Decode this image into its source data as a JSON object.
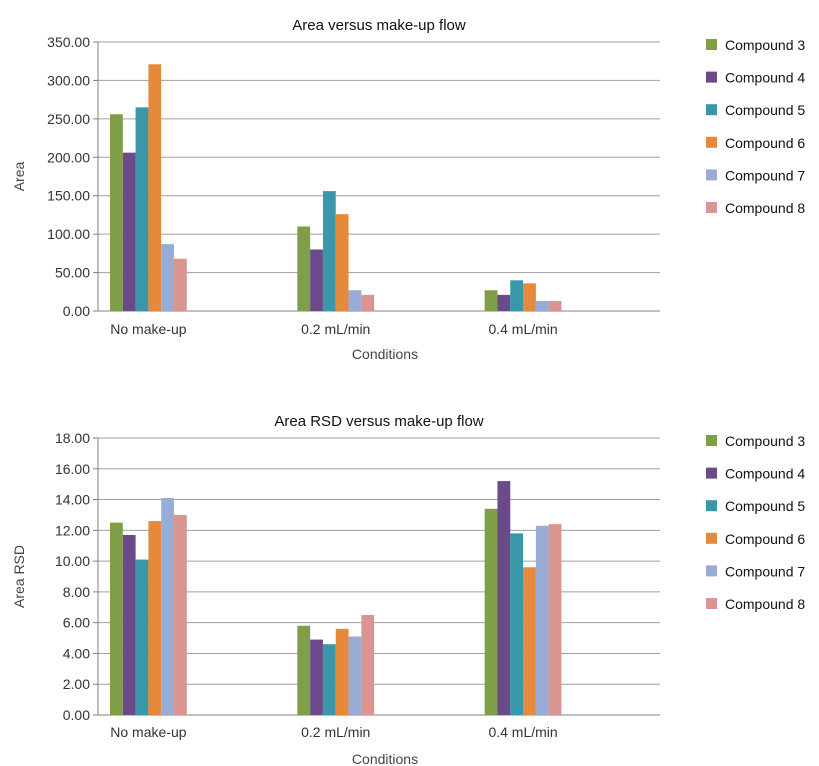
{
  "chart_data": [
    {
      "type": "bar",
      "title": "Area versus make-up flow",
      "xlabel": "Conditions",
      "ylabel": "Area",
      "ylim": [
        0,
        350
      ],
      "ytick_step": 50,
      "ytick_decimals": 2,
      "grid": true,
      "legend_position": "right",
      "categories": [
        "No make-up",
        "0.2 mL/min",
        "0.4 mL/min"
      ],
      "series": [
        {
          "name": "Compound 3",
          "color": "#7e9f48",
          "values": [
            256,
            110,
            27
          ]
        },
        {
          "name": "Compound 4",
          "color": "#6a4a88",
          "values": [
            206,
            80,
            21
          ]
        },
        {
          "name": "Compound 5",
          "color": "#3a97a9",
          "values": [
            265,
            156,
            40
          ]
        },
        {
          "name": "Compound 6",
          "color": "#e6893a",
          "values": [
            321,
            126,
            36
          ]
        },
        {
          "name": "Compound 7",
          "color": "#99acd6",
          "values": [
            87,
            27,
            13
          ]
        },
        {
          "name": "Compound 8",
          "color": "#d99592",
          "values": [
            68,
            21,
            13
          ]
        }
      ]
    },
    {
      "type": "bar",
      "title": "Area RSD versus make-up flow",
      "xlabel": "Conditions",
      "ylabel": "Area RSD",
      "ylim": [
        0,
        18
      ],
      "ytick_step": 2,
      "ytick_decimals": 2,
      "grid": true,
      "legend_position": "right",
      "categories": [
        "No make-up",
        "0.2 mL/min",
        "0.4 mL/min"
      ],
      "series": [
        {
          "name": "Compound 3",
          "color": "#7e9f48",
          "values": [
            12.5,
            5.8,
            13.4
          ]
        },
        {
          "name": "Compound 4",
          "color": "#6a4a88",
          "values": [
            11.7,
            4.9,
            15.2
          ]
        },
        {
          "name": "Compound 5",
          "color": "#3a97a9",
          "values": [
            10.1,
            4.6,
            11.8
          ]
        },
        {
          "name": "Compound 6",
          "color": "#e6893a",
          "values": [
            12.6,
            5.6,
            9.6
          ]
        },
        {
          "name": "Compound 7",
          "color": "#99acd6",
          "values": [
            14.1,
            5.1,
            12.3
          ]
        },
        {
          "name": "Compound 8",
          "color": "#d99592",
          "values": [
            13.0,
            6.5,
            12.4
          ]
        }
      ]
    }
  ]
}
